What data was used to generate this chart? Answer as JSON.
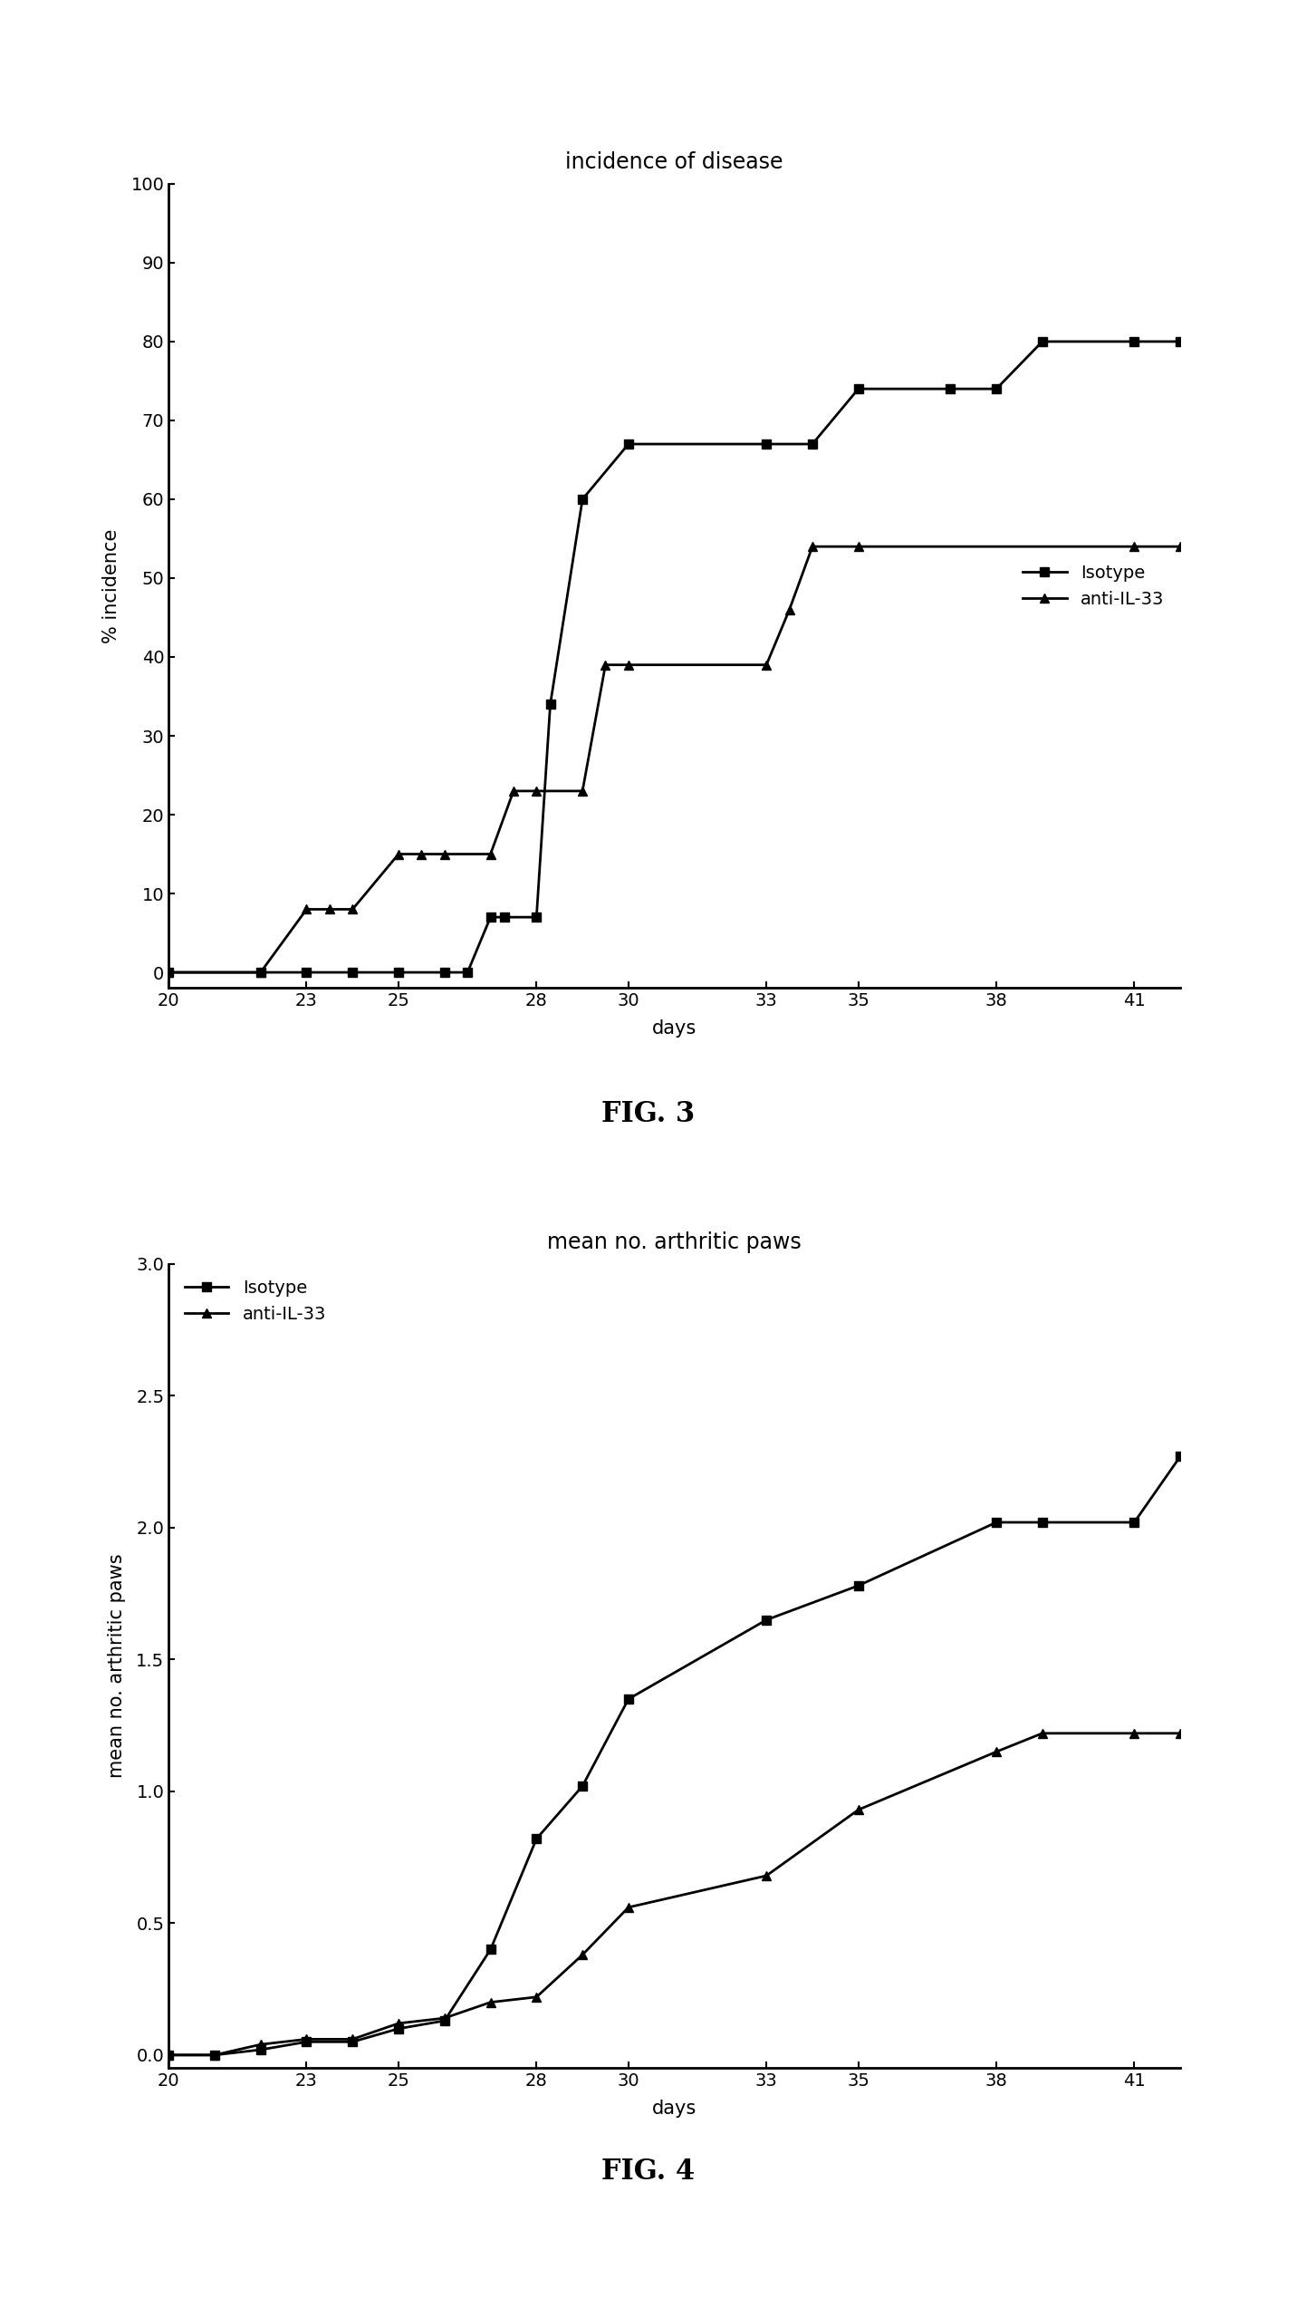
{
  "fig3": {
    "title": "incidence of disease",
    "xlabel": "days",
    "ylabel": "% incidence",
    "xlim": [
      20,
      42
    ],
    "ylim": [
      -2,
      100
    ],
    "xticks": [
      20,
      23,
      25,
      28,
      30,
      33,
      35,
      38,
      41
    ],
    "yticks": [
      0,
      10,
      20,
      30,
      40,
      50,
      60,
      70,
      80,
      90,
      100
    ],
    "isotype_x": [
      20,
      22,
      23,
      24,
      25,
      26,
      26.5,
      27,
      27.3,
      28,
      28.3,
      29,
      30,
      33,
      34,
      35,
      37,
      38,
      39,
      41,
      42
    ],
    "isotype_y": [
      0,
      0,
      0,
      0,
      0,
      0,
      0,
      7,
      7,
      7,
      34,
      60,
      67,
      67,
      67,
      74,
      74,
      74,
      80,
      80,
      80
    ],
    "antiil33_x": [
      20,
      22,
      23,
      23.5,
      24,
      25,
      25.5,
      26,
      27,
      27.5,
      28,
      29,
      29.5,
      30,
      33,
      33.5,
      34,
      35,
      41,
      42
    ],
    "antiil33_y": [
      0,
      0,
      8,
      8,
      8,
      15,
      15,
      15,
      15,
      23,
      23,
      23,
      39,
      39,
      39,
      46,
      54,
      54,
      54,
      54
    ],
    "legend_labels": [
      "Isotype",
      "anti-IL-33"
    ],
    "legend_loc": "center right",
    "fig_label": "FIG. 3"
  },
  "fig4": {
    "title": "mean no. arthritic paws",
    "xlabel": "days",
    "ylabel": "mean no. arthritic paws",
    "xlim": [
      20,
      42
    ],
    "ylim": [
      -0.05,
      3.0
    ],
    "xticks": [
      20,
      23,
      25,
      28,
      30,
      33,
      35,
      38,
      41
    ],
    "yticks": [
      0.0,
      0.5,
      1.0,
      1.5,
      2.0,
      2.5,
      3.0
    ],
    "isotype_x": [
      20,
      21,
      22,
      23,
      24,
      25,
      26,
      27,
      28,
      29,
      30,
      33,
      35,
      38,
      39,
      41,
      42
    ],
    "isotype_y": [
      0,
      0,
      0.02,
      0.05,
      0.05,
      0.1,
      0.13,
      0.4,
      0.82,
      1.02,
      1.35,
      1.65,
      1.78,
      2.02,
      2.02,
      2.02,
      2.27
    ],
    "antiil33_x": [
      20,
      21,
      22,
      23,
      24,
      25,
      26,
      27,
      28,
      29,
      30,
      33,
      35,
      38,
      39,
      41,
      42
    ],
    "antiil33_y": [
      0,
      0,
      0.04,
      0.06,
      0.06,
      0.12,
      0.14,
      0.2,
      0.22,
      0.38,
      0.56,
      0.68,
      0.93,
      1.15,
      1.22,
      1.22,
      1.22
    ],
    "legend_labels": [
      "Isotype",
      "anti-IL-33"
    ],
    "legend_loc": "upper left",
    "fig_label": "FIG. 4"
  },
  "line_color": "#000000",
  "marker_square": "s",
  "marker_triangle": "^",
  "markersize": 7,
  "linewidth": 2.0,
  "title_fontsize": 17,
  "axis_label_fontsize": 15,
  "tick_fontsize": 14,
  "legend_fontsize": 14,
  "fig_label_fontsize": 22
}
